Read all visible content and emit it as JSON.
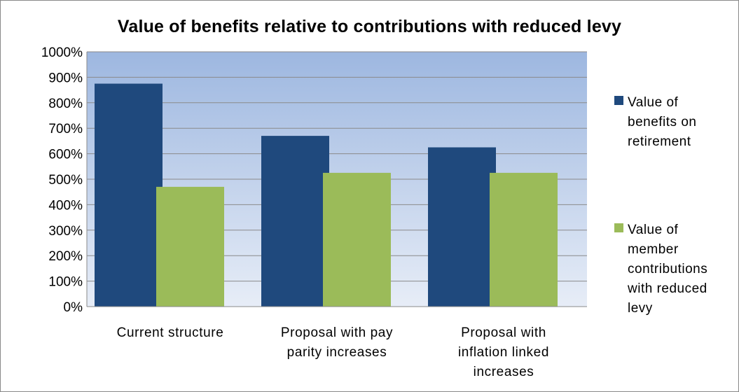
{
  "chart_data": {
    "type": "bar",
    "title": "Value of benefits relative to contributions with reduced levy",
    "xlabel": "",
    "ylabel": "",
    "categories": [
      [
        "Current structure"
      ],
      [
        "Proposal with pay",
        "parity increases"
      ],
      [
        "Proposal with",
        "inflation linked",
        "increases"
      ]
    ],
    "series": [
      {
        "name": [
          "Value of",
          "benefits on",
          "retirement"
        ],
        "color": "#1F497D",
        "values": [
          875,
          670,
          625
        ]
      },
      {
        "name": [
          "Value of",
          "member",
          "contributions",
          "with reduced",
          "levy"
        ],
        "color": "#9BBB59",
        "values": [
          470,
          525,
          525
        ]
      }
    ],
    "ylim": [
      0,
      1000
    ],
    "yticks": [
      0,
      100,
      200,
      300,
      400,
      500,
      600,
      700,
      800,
      900,
      1000
    ],
    "ytick_format": "percent",
    "grid": true,
    "legend_position": "right",
    "plot_background": "gradient-blue"
  }
}
